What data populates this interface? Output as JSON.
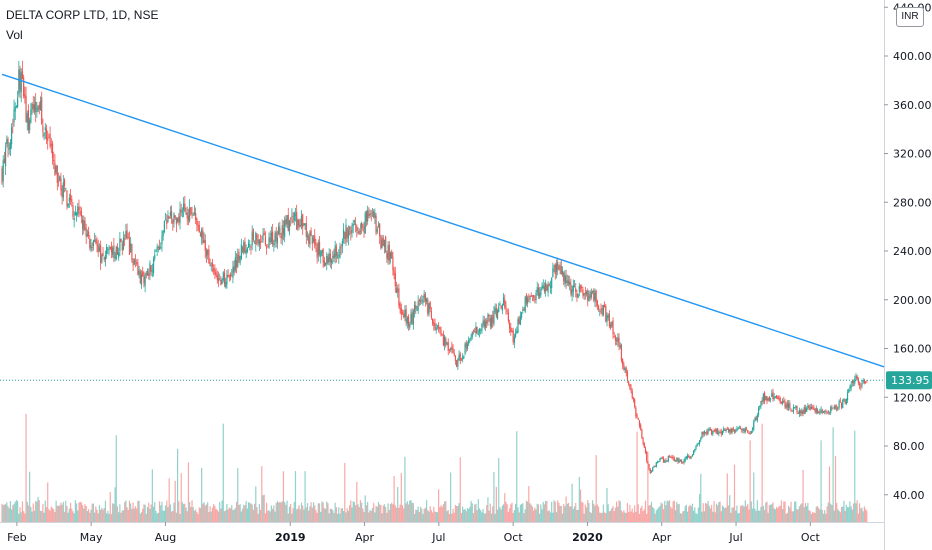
{
  "header": {
    "title": "DELTA CORP LTD, 1D, NSE",
    "volume_label": "Vol"
  },
  "price_scale": {
    "currency": "INR",
    "last_price": "133.95",
    "last_price_color": "#26a69a"
  },
  "colors": {
    "up": "#26a69a",
    "down": "#ef5350",
    "trendline": "#2196f3"
  },
  "chart_data": {
    "type": "candlestick",
    "ylim": [
      0,
      440
    ],
    "y_ticks": [
      "40.00",
      "80.00",
      "120.00",
      "160.00",
      "200.00",
      "240.00",
      "280.00",
      "320.00",
      "360.00",
      "400.00",
      "440.00"
    ],
    "x_ticks": [
      {
        "label": "Feb",
        "t": 0.0
      },
      {
        "label": "May",
        "t": 0.25
      },
      {
        "label": "Aug",
        "t": 0.5
      },
      {
        "label": "2019",
        "t": 0.92,
        "bold": true
      },
      {
        "label": "Apr",
        "t": 1.17
      },
      {
        "label": "Jul",
        "t": 1.42
      },
      {
        "label": "Oct",
        "t": 1.67
      },
      {
        "label": "2020",
        "t": 1.92,
        "bold": true
      },
      {
        "label": "Apr",
        "t": 2.17
      },
      {
        "label": "Jul",
        "t": 2.42
      },
      {
        "label": "Oct",
        "t": 2.67
      }
    ],
    "x_range": [
      -0.05,
      2.88
    ],
    "close_series": [
      [
        -0.05,
        305
      ],
      [
        -0.02,
        340
      ],
      [
        0.01,
        385
      ],
      [
        0.04,
        340
      ],
      [
        0.07,
        370
      ],
      [
        0.1,
        330
      ],
      [
        0.14,
        300
      ],
      [
        0.17,
        280
      ],
      [
        0.21,
        270
      ],
      [
        0.25,
        245
      ],
      [
        0.29,
        235
      ],
      [
        0.33,
        240
      ],
      [
        0.37,
        250
      ],
      [
        0.42,
        215
      ],
      [
        0.46,
        232
      ],
      [
        0.5,
        262
      ],
      [
        0.55,
        272
      ],
      [
        0.59,
        272
      ],
      [
        0.63,
        245
      ],
      [
        0.67,
        220
      ],
      [
        0.71,
        215
      ],
      [
        0.76,
        245
      ],
      [
        0.8,
        250
      ],
      [
        0.84,
        245
      ],
      [
        0.88,
        255
      ],
      [
        0.92,
        265
      ],
      [
        0.96,
        262
      ],
      [
        1.0,
        245
      ],
      [
        1.04,
        230
      ],
      [
        1.08,
        240
      ],
      [
        1.12,
        262
      ],
      [
        1.16,
        258
      ],
      [
        1.19,
        275
      ],
      [
        1.22,
        252
      ],
      [
        1.26,
        232
      ],
      [
        1.29,
        195
      ],
      [
        1.32,
        180
      ],
      [
        1.36,
        205
      ],
      [
        1.4,
        185
      ],
      [
        1.44,
        165
      ],
      [
        1.48,
        148
      ],
      [
        1.52,
        165
      ],
      [
        1.56,
        178
      ],
      [
        1.6,
        185
      ],
      [
        1.64,
        200
      ],
      [
        1.67,
        165
      ],
      [
        1.7,
        195
      ],
      [
        1.74,
        205
      ],
      [
        1.78,
        210
      ],
      [
        1.82,
        228
      ],
      [
        1.86,
        212
      ],
      [
        1.9,
        205
      ],
      [
        1.94,
        205
      ],
      [
        1.98,
        188
      ],
      [
        2.02,
        168
      ],
      [
        2.06,
        130
      ],
      [
        2.1,
        90
      ],
      [
        2.13,
        58
      ],
      [
        2.16,
        68
      ],
      [
        2.2,
        70
      ],
      [
        2.24,
        68
      ],
      [
        2.27,
        72
      ],
      [
        2.31,
        92
      ],
      [
        2.35,
        92
      ],
      [
        2.39,
        92
      ],
      [
        2.43,
        95
      ],
      [
        2.47,
        90
      ],
      [
        2.51,
        120
      ],
      [
        2.55,
        120
      ],
      [
        2.59,
        115
      ],
      [
        2.63,
        108
      ],
      [
        2.67,
        112
      ],
      [
        2.71,
        108
      ],
      [
        2.75,
        110
      ],
      [
        2.79,
        118
      ],
      [
        2.82,
        138
      ],
      [
        2.84,
        132
      ],
      [
        2.86,
        134
      ]
    ],
    "trendline": {
      "x": [
        -0.05,
        2.88
      ],
      "y": [
        385,
        145
      ]
    }
  }
}
